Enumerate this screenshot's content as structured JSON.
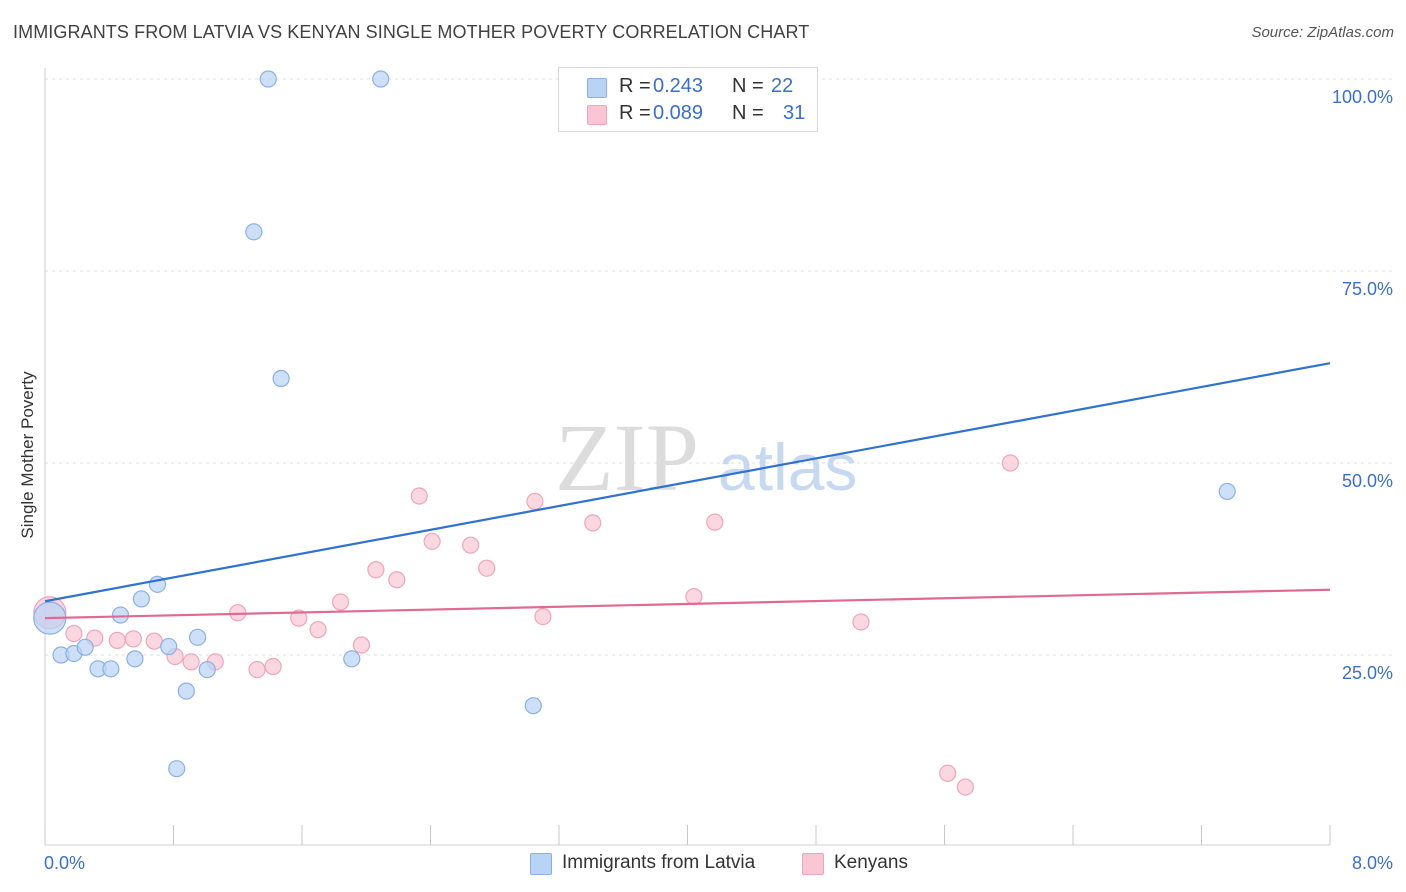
{
  "header": {
    "title": "IMMIGRANTS FROM LATVIA VS KENYAN SINGLE MOTHER POVERTY CORRELATION CHART",
    "source": "Source: ZipAtlas.com"
  },
  "legend": {
    "rows": [
      {
        "r_label": "R =",
        "r_value": "0.243",
        "n_label": "N =",
        "n_value": "22"
      },
      {
        "r_label": "R =",
        "r_value": "0.089",
        "n_label": "N =",
        "n_value": "31"
      }
    ]
  },
  "bottom_legend": {
    "series0": "Immigrants from Latvia",
    "series1": "Kenyans"
  },
  "watermark": {
    "zip": "ZIP",
    "atlas": "atlas"
  },
  "colors": {
    "blue_fill": "#b9d3f5",
    "blue_stroke": "#8ab0e4",
    "blue_line": "#2f72d0",
    "pink_fill": "#f8c6d4",
    "pink_stroke": "#eda6bb",
    "pink_line": "#e06a93",
    "tick_label": "#3a6fc9",
    "grid": "#dcdcdc"
  },
  "chart_data": {
    "type": "scatter",
    "title": "IMMIGRANTS FROM LATVIA VS KENYAN SINGLE MOTHER POVERTY CORRELATION CHART",
    "xlabel": "",
    "ylabel": "Single Mother Poverty",
    "xlim": [
      0,
      8
    ],
    "ylim": [
      0,
      100
    ],
    "x_tick_labels": [
      "0.0%",
      "8.0%"
    ],
    "y_ticks": [
      25,
      50,
      75,
      100
    ],
    "y_tick_labels": [
      "25.0%",
      "50.0%",
      "75.0%",
      "100.0%"
    ],
    "grid": true,
    "legend_position": "top-center",
    "series": [
      {
        "name": "Immigrants from Latvia",
        "color": "#b9d3f5",
        "trend": {
          "x": [
            0,
            8
          ],
          "y": [
            32.0,
            63.0
          ]
        },
        "points": [
          {
            "x": 0.03,
            "y": 29.8,
            "big": true
          },
          {
            "x": 0.1,
            "y": 25.0
          },
          {
            "x": 0.18,
            "y": 25.2
          },
          {
            "x": 0.25,
            "y": 26.0
          },
          {
            "x": 0.33,
            "y": 23.2
          },
          {
            "x": 0.41,
            "y": 23.2
          },
          {
            "x": 0.47,
            "y": 30.2
          },
          {
            "x": 0.56,
            "y": 24.5
          },
          {
            "x": 0.6,
            "y": 32.3
          },
          {
            "x": 0.7,
            "y": 34.2
          },
          {
            "x": 0.77,
            "y": 26.1
          },
          {
            "x": 0.82,
            "y": 10.2
          },
          {
            "x": 0.88,
            "y": 20.3
          },
          {
            "x": 0.95,
            "y": 27.3
          },
          {
            "x": 1.01,
            "y": 23.1
          },
          {
            "x": 1.3,
            "y": 80.1
          },
          {
            "x": 1.39,
            "y": 100.0
          },
          {
            "x": 1.47,
            "y": 61.0
          },
          {
            "x": 1.91,
            "y": 24.5
          },
          {
            "x": 2.09,
            "y": 100.0
          },
          {
            "x": 3.04,
            "y": 18.4
          },
          {
            "x": 7.36,
            "y": 46.3
          }
        ]
      },
      {
        "name": "Kenyans",
        "color": "#f8c6d4",
        "trend": {
          "x": [
            0,
            8
          ],
          "y": [
            29.8,
            33.5
          ]
        },
        "points": [
          {
            "x": 0.03,
            "y": 30.5,
            "big": true
          },
          {
            "x": 0.18,
            "y": 27.8
          },
          {
            "x": 0.31,
            "y": 27.2
          },
          {
            "x": 0.45,
            "y": 26.9
          },
          {
            "x": 0.55,
            "y": 27.1
          },
          {
            "x": 0.68,
            "y": 26.8
          },
          {
            "x": 0.81,
            "y": 24.8
          },
          {
            "x": 0.91,
            "y": 24.1
          },
          {
            "x": 1.06,
            "y": 24.1
          },
          {
            "x": 1.2,
            "y": 30.5
          },
          {
            "x": 1.32,
            "y": 23.1
          },
          {
            "x": 1.42,
            "y": 23.5
          },
          {
            "x": 1.58,
            "y": 29.8
          },
          {
            "x": 1.7,
            "y": 28.3
          },
          {
            "x": 1.84,
            "y": 31.9
          },
          {
            "x": 1.97,
            "y": 26.3
          },
          {
            "x": 2.06,
            "y": 36.1
          },
          {
            "x": 2.19,
            "y": 34.8
          },
          {
            "x": 2.33,
            "y": 45.7
          },
          {
            "x": 2.41,
            "y": 39.8
          },
          {
            "x": 2.65,
            "y": 39.3
          },
          {
            "x": 2.75,
            "y": 36.3
          },
          {
            "x": 3.05,
            "y": 45.0
          },
          {
            "x": 3.1,
            "y": 30.0
          },
          {
            "x": 3.41,
            "y": 42.2
          },
          {
            "x": 4.04,
            "y": 32.6
          },
          {
            "x": 4.17,
            "y": 42.3
          },
          {
            "x": 5.08,
            "y": 29.3
          },
          {
            "x": 5.62,
            "y": 9.6
          },
          {
            "x": 5.73,
            "y": 7.8
          },
          {
            "x": 6.01,
            "y": 50.0
          }
        ]
      }
    ]
  }
}
